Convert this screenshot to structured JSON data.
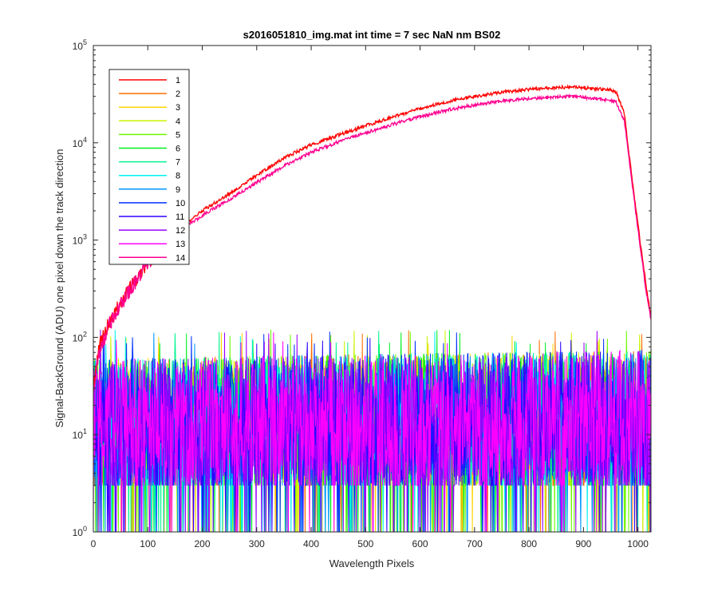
{
  "chart_data": {
    "type": "line",
    "title": "s2016051810_img.mat int time = 7 sec  NaN nm BS02",
    "xlabel": "Wavelength Pixels",
    "ylabel": "Signal-BackGround (ADU) one pixel down the track direction",
    "xlim": [
      0,
      1024
    ],
    "ylim": [
      1,
      100000
    ],
    "yscale": "log",
    "xticks": [
      0,
      100,
      200,
      300,
      400,
      500,
      600,
      700,
      800,
      900,
      1000
    ],
    "yticks": [
      {
        "value": 1,
        "base": "10",
        "exp": "0"
      },
      {
        "value": 10,
        "base": "10",
        "exp": "1"
      },
      {
        "value": 100,
        "base": "10",
        "exp": "2"
      },
      {
        "value": 1000,
        "base": "10",
        "exp": "3"
      },
      {
        "value": 10000,
        "base": "10",
        "exp": "4"
      },
      {
        "value": 100000,
        "base": "10",
        "exp": "5"
      }
    ],
    "grid": false,
    "legend_position": "top-left",
    "signal_profile": {
      "x": [
        0,
        10,
        30,
        60,
        100,
        150,
        200,
        250,
        300,
        350,
        400,
        450,
        500,
        550,
        600,
        650,
        700,
        750,
        800,
        850,
        880,
        920,
        950,
        960,
        975,
        990,
        1005,
        1015,
        1024
      ],
      "series_1": [
        30,
        80,
        150,
        280,
        600,
        1200,
        2000,
        3000,
        4600,
        7000,
        9500,
        12000,
        15000,
        18500,
        22500,
        26500,
        30000,
        33000,
        35500,
        37000,
        37500,
        36000,
        35000,
        33000,
        20000,
        4000,
        900,
        350,
        160
      ],
      "series_14": [
        25,
        70,
        140,
        270,
        580,
        1150,
        1800,
        2600,
        3900,
        5800,
        8000,
        10200,
        12700,
        15500,
        18500,
        21700,
        24500,
        27000,
        28500,
        29500,
        30000,
        28500,
        27500,
        26000,
        17000,
        3500,
        800,
        300,
        150
      ]
    },
    "noise_band": {
      "floor": 1,
      "typical_min": 3,
      "typical_max": 60,
      "peak": 120
    },
    "series": [
      {
        "name": "1",
        "color": "#ff0000",
        "kind": "signal"
      },
      {
        "name": "2",
        "color": "#ff6d00",
        "kind": "noise"
      },
      {
        "name": "3",
        "color": "#ffd400",
        "kind": "noise"
      },
      {
        "name": "4",
        "color": "#c8f500",
        "kind": "noise"
      },
      {
        "name": "5",
        "color": "#6ef700",
        "kind": "noise"
      },
      {
        "name": "6",
        "color": "#00f020",
        "kind": "noise"
      },
      {
        "name": "7",
        "color": "#00f590",
        "kind": "noise"
      },
      {
        "name": "8",
        "color": "#00f0f0",
        "kind": "noise"
      },
      {
        "name": "9",
        "color": "#0095ff",
        "kind": "noise"
      },
      {
        "name": "10",
        "color": "#0030ff",
        "kind": "noise"
      },
      {
        "name": "11",
        "color": "#3000ff",
        "kind": "noise"
      },
      {
        "name": "12",
        "color": "#9a00ff",
        "kind": "noise"
      },
      {
        "name": "13",
        "color": "#ff00ff",
        "kind": "noise"
      },
      {
        "name": "14",
        "color": "#ff0090",
        "kind": "signal"
      }
    ]
  }
}
